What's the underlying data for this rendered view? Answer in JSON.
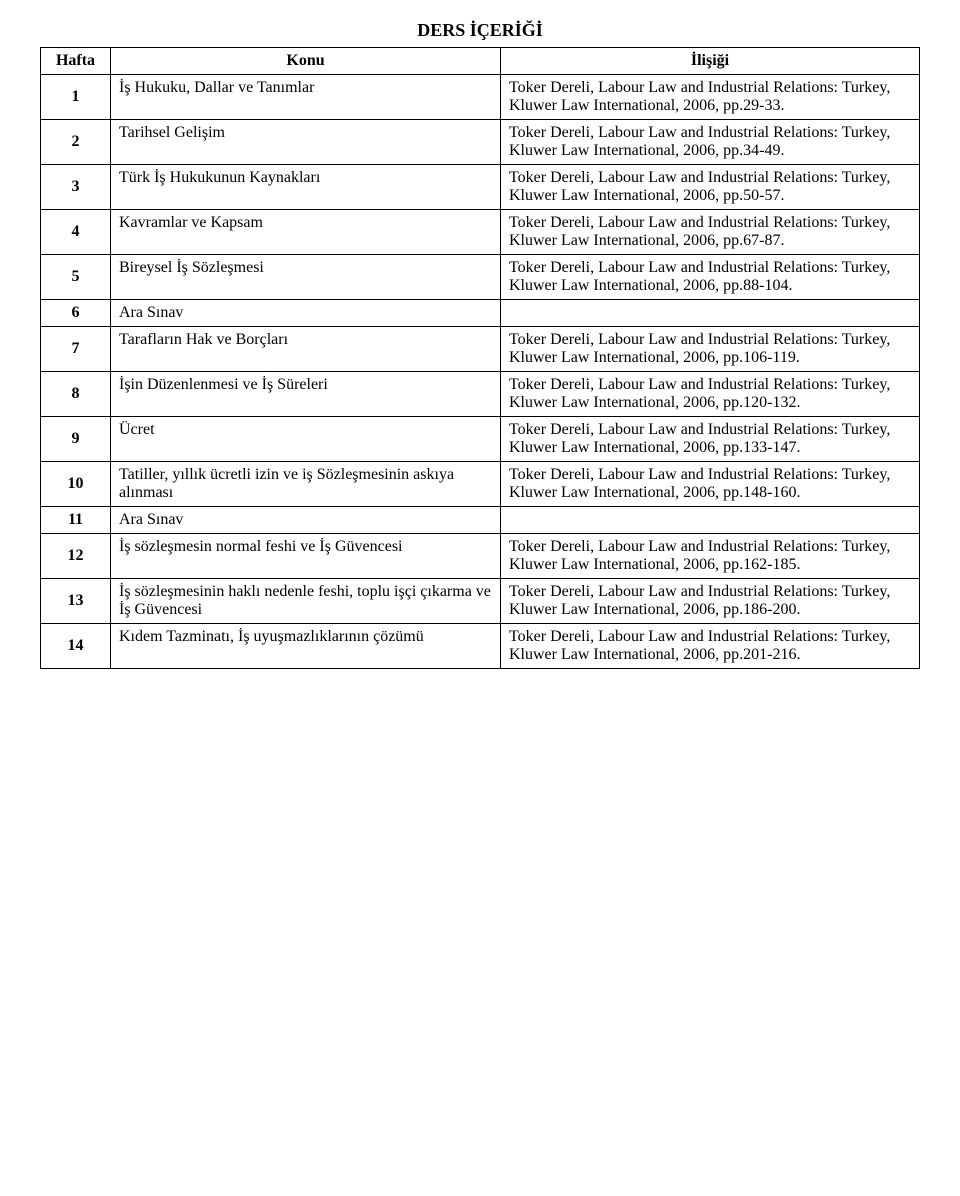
{
  "title": "DERS İÇERİĞİ",
  "headers": {
    "week": "Hafta",
    "topic": "Konu",
    "relation": "İlişiği"
  },
  "rows": [
    {
      "week": "1",
      "topic": "İş Hukuku, Dallar ve Tanımlar",
      "relation": "Toker Dereli, Labour Law and Industrial Relations: Turkey, Kluwer Law International, 2006, pp.29-33."
    },
    {
      "week": "2",
      "topic": "Tarihsel Gelişim",
      "relation": "Toker Dereli, Labour Law and Industrial Relations: Turkey, Kluwer Law International, 2006, pp.34-49."
    },
    {
      "week": "3",
      "topic": "Türk İş Hukukunun Kaynakları",
      "relation": "Toker Dereli, Labour Law and Industrial Relations: Turkey, Kluwer Law International, 2006, pp.50-57."
    },
    {
      "week": "4",
      "topic": "Kavramlar ve Kapsam",
      "relation": "Toker Dereli, Labour Law and Industrial Relations: Turkey, Kluwer Law International, 2006, pp.67-87."
    },
    {
      "week": "5",
      "topic": "Bireysel İş Sözleşmesi",
      "relation": "Toker Dereli, Labour Law and Industrial Relations: Turkey, Kluwer Law International, 2006, pp.88-104."
    },
    {
      "week": "6",
      "topic": "Ara Sınav",
      "relation": ""
    },
    {
      "week": "7",
      "topic": "Tarafların Hak ve Borçları",
      "relation": "Toker Dereli, Labour Law and Industrial Relations: Turkey, Kluwer Law International, 2006, pp.106-119."
    },
    {
      "week": "8",
      "topic": "İşin Düzenlenmesi ve İş Süreleri",
      "relation": "Toker Dereli, Labour Law and Industrial Relations: Turkey, Kluwer Law International, 2006, pp.120-132."
    },
    {
      "week": "9",
      "topic": "Ücret",
      "relation": "Toker Dereli, Labour Law and Industrial Relations: Turkey, Kluwer Law International, 2006, pp.133-147."
    },
    {
      "week": "10",
      "topic": "Tatiller, yıllık ücretli izin ve iş Sözleşmesinin askıya alınması",
      "relation": "Toker Dereli, Labour Law and Industrial Relations: Turkey, Kluwer Law International, 2006, pp.148-160."
    },
    {
      "week": "11",
      "topic": "Ara Sınav",
      "relation": ""
    },
    {
      "week": "12",
      "topic": "İş sözleşmesin normal feshi ve İş Güvencesi",
      "relation": "Toker Dereli, Labour Law and Industrial Relations: Turkey, Kluwer Law International, 2006, pp.162-185."
    },
    {
      "week": "13",
      "topic": "İş sözleşmesinin haklı nedenle feshi, toplu işçi çıkarma ve İş Güvencesi",
      "relation": "Toker Dereli, Labour Law and Industrial Relations: Turkey, Kluwer Law International, 2006, pp.186-200."
    },
    {
      "week": "14",
      "topic": "Kıdem Tazminatı, İş uyuşmazlıklarının çözümü",
      "relation": "Toker Dereli, Labour Law and Industrial Relations: Turkey, Kluwer Law International, 2006, pp.201-216."
    }
  ]
}
